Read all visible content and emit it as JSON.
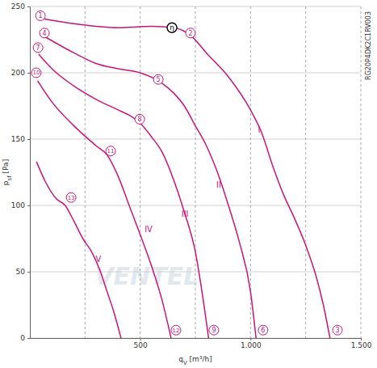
{
  "chart_data": {
    "type": "line",
    "xlabel": {
      "main": "q",
      "sub": "V",
      "unit": " [m³/h]"
    },
    "ylabel": {
      "main": "p",
      "sub": "sf",
      "unit": " [Pa]"
    },
    "xlim": [
      0,
      1500
    ],
    "ylim": [
      0,
      250
    ],
    "xticks": [
      500,
      {
        "value": 1000,
        "label": "1.000"
      },
      {
        "value": 1500,
        "label": "1.500"
      }
    ],
    "x_grid": [
      250,
      750,
      1250
    ],
    "yticks": [
      0,
      50,
      100,
      150,
      200,
      250
    ],
    "grid": true,
    "series": [
      {
        "name": "I",
        "color": "#c8157a",
        "label_x": 1039,
        "label_y": 157,
        "x": [
          50,
          200,
          400,
          550,
          650,
          730,
          800,
          900,
          1000,
          1050,
          1100,
          1150,
          1200,
          1250,
          1300,
          1330,
          1360
        ],
        "values": [
          241,
          237,
          234,
          235,
          234,
          228,
          215,
          197,
          172,
          155,
          130,
          108,
          90,
          70,
          45,
          25,
          0
        ]
      },
      {
        "name": "II",
        "color": "#c8157a",
        "label_x": 856,
        "label_y": 115,
        "x": [
          70,
          200,
          300,
          400,
          500,
          600,
          650,
          700,
          750,
          800,
          850,
          900,
          950,
          1000,
          1025
        ],
        "values": [
          227,
          215,
          207,
          203,
          200,
          192,
          185,
          175,
          160,
          145,
          125,
          100,
          72,
          35,
          0
        ]
      },
      {
        "name": "III",
        "color": "#c8157a",
        "label_x": 703,
        "label_y": 93,
        "x": [
          40,
          100,
          200,
          300,
          400,
          450,
          500,
          550,
          600,
          650,
          700,
          750,
          780,
          810
        ],
        "values": [
          214,
          203,
          190,
          180,
          172,
          168,
          162,
          152,
          140,
          120,
          95,
          65,
          35,
          0
        ]
      },
      {
        "name": "IV",
        "color": "#c8157a",
        "label_x": 538,
        "label_y": 82,
        "x": [
          35,
          100,
          200,
          300,
          350,
          400,
          450,
          500,
          550,
          600,
          640
        ],
        "values": [
          194,
          178,
          160,
          145,
          138,
          122,
          100,
          78,
          55,
          28,
          0
        ]
      },
      {
        "name": "V",
        "color": "#c8157a",
        "label_x": 311,
        "label_y": 59,
        "x": [
          30,
          70,
          120,
          160,
          200,
          240,
          280,
          320,
          350,
          380,
          413
        ],
        "values": [
          133,
          118,
          105,
          100,
          88,
          75,
          65,
          50,
          35,
          20,
          0
        ]
      }
    ],
    "annotations": [
      {
        "text": "1",
        "x": 48,
        "y": 243
      },
      {
        "text": "2",
        "x": 728,
        "y": 230
      },
      {
        "text": "3",
        "x": 1394,
        "y": 6
      },
      {
        "text": "4",
        "x": 66,
        "y": 230
      },
      {
        "text": "5",
        "x": 582,
        "y": 195
      },
      {
        "text": "6",
        "x": 1057,
        "y": 6
      },
      {
        "text": "7",
        "x": 37,
        "y": 219
      },
      {
        "text": "8",
        "x": 498,
        "y": 165
      },
      {
        "text": "9",
        "x": 834,
        "y": 6
      },
      {
        "text": "10",
        "x": 29,
        "y": 200
      },
      {
        "text": "11",
        "x": 366,
        "y": 141
      },
      {
        "text": "12",
        "x": 662,
        "y": 6
      },
      {
        "text": "13",
        "x": 187,
        "y": 106
      }
    ],
    "efficiency_point": {
      "text": "η",
      "x": 644,
      "y": 234
    },
    "model": "RG20P4DK2C1RV003",
    "watermark": "VENTEL"
  }
}
